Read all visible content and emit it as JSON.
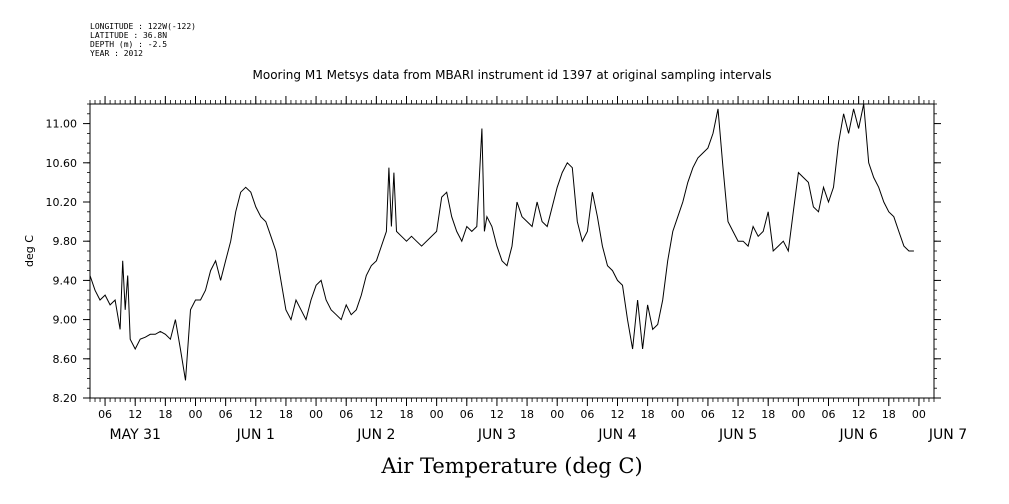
{
  "metadata": {
    "longitude": "LONGITUDE : 122W(-122)",
    "latitude": "LATITUDE : 36.8N",
    "depth": "DEPTH (m) : -2.5",
    "year": "YEAR : 2012"
  },
  "chart_data": {
    "type": "line",
    "title": "Mooring M1 Metsys data from MBARI instrument id 1397 at original sampling intervals",
    "xlabel": "Air Temperature (deg C)",
    "ylabel": "deg C",
    "ylim": [
      8.2,
      11.2
    ],
    "yticks": [
      "8.20",
      "8.60",
      "9.00",
      "9.40",
      "9.80",
      "10.20",
      "10.60",
      "11.00"
    ],
    "xlim_hours_label": [
      "2012-05-31 03:00",
      "2012-06-07 00:00"
    ],
    "hour_ticks": [
      {
        "day": 0,
        "hour": 6,
        "label": "06"
      },
      {
        "day": 0,
        "hour": 12,
        "label": "12"
      },
      {
        "day": 0,
        "hour": 18,
        "label": "18"
      },
      {
        "day": 1,
        "hour": 0,
        "label": "00"
      },
      {
        "day": 1,
        "hour": 6,
        "label": "06"
      },
      {
        "day": 1,
        "hour": 12,
        "label": "12"
      },
      {
        "day": 1,
        "hour": 18,
        "label": "18"
      },
      {
        "day": 2,
        "hour": 0,
        "label": "00"
      },
      {
        "day": 2,
        "hour": 6,
        "label": "06"
      },
      {
        "day": 2,
        "hour": 12,
        "label": "12"
      },
      {
        "day": 2,
        "hour": 18,
        "label": "18"
      },
      {
        "day": 3,
        "hour": 0,
        "label": "00"
      },
      {
        "day": 3,
        "hour": 6,
        "label": "06"
      },
      {
        "day": 3,
        "hour": 12,
        "label": "12"
      },
      {
        "day": 3,
        "hour": 18,
        "label": "18"
      },
      {
        "day": 4,
        "hour": 0,
        "label": "00"
      },
      {
        "day": 4,
        "hour": 6,
        "label": "06"
      },
      {
        "day": 4,
        "hour": 12,
        "label": "12"
      },
      {
        "day": 4,
        "hour": 18,
        "label": "18"
      },
      {
        "day": 5,
        "hour": 0,
        "label": "00"
      },
      {
        "day": 5,
        "hour": 6,
        "label": "06"
      },
      {
        "day": 5,
        "hour": 12,
        "label": "12"
      },
      {
        "day": 5,
        "hour": 18,
        "label": "18"
      },
      {
        "day": 6,
        "hour": 0,
        "label": "00"
      },
      {
        "day": 6,
        "hour": 6,
        "label": "06"
      },
      {
        "day": 6,
        "hour": 12,
        "label": "12"
      },
      {
        "day": 6,
        "hour": 18,
        "label": "18"
      },
      {
        "day": 7,
        "hour": 0,
        "label": "00"
      }
    ],
    "date_labels": [
      {
        "day": 0,
        "hour": 12,
        "label": "MAY 31"
      },
      {
        "day": 1,
        "hour": 12,
        "label": "JUN  1"
      },
      {
        "day": 2,
        "hour": 12,
        "label": "JUN  2"
      },
      {
        "day": 3,
        "hour": 12,
        "label": "JUN  3"
      },
      {
        "day": 4,
        "hour": 12,
        "label": "JUN  4"
      },
      {
        "day": 5,
        "hour": 12,
        "label": "JUN  5"
      },
      {
        "day": 6,
        "hour": 12,
        "label": "JUN  6"
      },
      {
        "day": 7,
        "hour": 12,
        "label": "JUN  7"
      }
    ],
    "series": [
      {
        "points_day_hour_value": [
          [
            0,
            3,
            9.45
          ],
          [
            0,
            4,
            9.3
          ],
          [
            0,
            5,
            9.2
          ],
          [
            0,
            6,
            9.25
          ],
          [
            0,
            7,
            9.15
          ],
          [
            0,
            8,
            9.2
          ],
          [
            0,
            9,
            8.9
          ],
          [
            0,
            9.5,
            9.6
          ],
          [
            0,
            10,
            9.1
          ],
          [
            0,
            10.5,
            9.45
          ],
          [
            0,
            11,
            8.8
          ],
          [
            0,
            12,
            8.7
          ],
          [
            0,
            13,
            8.8
          ],
          [
            0,
            14,
            8.82
          ],
          [
            0,
            15,
            8.85
          ],
          [
            0,
            16,
            8.85
          ],
          [
            0,
            17,
            8.88
          ],
          [
            0,
            18,
            8.85
          ],
          [
            0,
            19,
            8.8
          ],
          [
            0,
            20,
            9.0
          ],
          [
            0,
            21,
            8.7
          ],
          [
            0,
            22,
            8.38
          ],
          [
            0,
            23,
            9.1
          ],
          [
            1,
            0,
            9.2
          ],
          [
            1,
            1,
            9.2
          ],
          [
            1,
            2,
            9.3
          ],
          [
            1,
            3,
            9.5
          ],
          [
            1,
            4,
            9.6
          ],
          [
            1,
            5,
            9.4
          ],
          [
            1,
            6,
            9.6
          ],
          [
            1,
            7,
            9.8
          ],
          [
            1,
            8,
            10.1
          ],
          [
            1,
            9,
            10.3
          ],
          [
            1,
            10,
            10.35
          ],
          [
            1,
            11,
            10.3
          ],
          [
            1,
            12,
            10.15
          ],
          [
            1,
            13,
            10.05
          ],
          [
            1,
            14,
            10.0
          ],
          [
            1,
            15,
            9.85
          ],
          [
            1,
            16,
            9.7
          ],
          [
            1,
            17,
            9.4
          ],
          [
            1,
            18,
            9.1
          ],
          [
            1,
            19,
            9.0
          ],
          [
            1,
            20,
            9.2
          ],
          [
            1,
            21,
            9.1
          ],
          [
            1,
            22,
            9.0
          ],
          [
            1,
            23,
            9.2
          ],
          [
            2,
            0,
            9.35
          ],
          [
            2,
            1,
            9.4
          ],
          [
            2,
            2,
            9.2
          ],
          [
            2,
            3,
            9.1
          ],
          [
            2,
            4,
            9.05
          ],
          [
            2,
            5,
            9.0
          ],
          [
            2,
            6,
            9.15
          ],
          [
            2,
            7,
            9.05
          ],
          [
            2,
            8,
            9.1
          ],
          [
            2,
            9,
            9.25
          ],
          [
            2,
            10,
            9.45
          ],
          [
            2,
            11,
            9.55
          ],
          [
            2,
            12,
            9.6
          ],
          [
            2,
            13,
            9.75
          ],
          [
            2,
            14,
            9.9
          ],
          [
            2,
            14.5,
            10.55
          ],
          [
            2,
            15,
            9.95
          ],
          [
            2,
            15.5,
            10.5
          ],
          [
            2,
            16,
            9.9
          ],
          [
            2,
            17,
            9.85
          ],
          [
            2,
            18,
            9.8
          ],
          [
            2,
            19,
            9.85
          ],
          [
            2,
            20,
            9.8
          ],
          [
            2,
            21,
            9.75
          ],
          [
            3,
            0,
            9.9
          ],
          [
            3,
            1,
            10.25
          ],
          [
            3,
            2,
            10.3
          ],
          [
            3,
            3,
            10.05
          ],
          [
            3,
            4,
            9.9
          ],
          [
            3,
            5,
            9.8
          ],
          [
            3,
            6,
            9.95
          ],
          [
            3,
            7,
            9.9
          ],
          [
            3,
            8,
            9.95
          ],
          [
            3,
            9,
            10.95
          ],
          [
            3,
            9.5,
            9.9
          ],
          [
            3,
            10,
            10.05
          ],
          [
            3,
            11,
            9.95
          ],
          [
            3,
            12,
            9.75
          ],
          [
            3,
            13,
            9.6
          ],
          [
            3,
            14,
            9.55
          ],
          [
            3,
            15,
            9.75
          ],
          [
            3,
            16,
            10.2
          ],
          [
            3,
            17,
            10.05
          ],
          [
            3,
            18,
            10.0
          ],
          [
            3,
            19,
            9.95
          ],
          [
            3,
            20,
            10.2
          ],
          [
            3,
            21,
            10.0
          ],
          [
            3,
            22,
            9.95
          ],
          [
            4,
            0,
            10.35
          ],
          [
            4,
            1,
            10.5
          ],
          [
            4,
            2,
            10.6
          ],
          [
            4,
            3,
            10.55
          ],
          [
            4,
            4,
            10.0
          ],
          [
            4,
            5,
            9.8
          ],
          [
            4,
            6,
            9.9
          ],
          [
            4,
            7,
            10.3
          ],
          [
            4,
            8,
            10.05
          ],
          [
            4,
            9,
            9.75
          ],
          [
            4,
            10,
            9.55
          ],
          [
            4,
            11,
            9.5
          ],
          [
            4,
            12,
            9.4
          ],
          [
            4,
            13,
            9.35
          ],
          [
            4,
            14,
            9.0
          ],
          [
            4,
            15,
            8.7
          ],
          [
            4,
            16,
            9.2
          ],
          [
            4,
            17,
            8.7
          ],
          [
            4,
            18,
            9.15
          ],
          [
            4,
            19,
            8.9
          ],
          [
            4,
            20,
            8.95
          ],
          [
            4,
            21,
            9.2
          ],
          [
            4,
            22,
            9.6
          ],
          [
            4,
            23,
            9.9
          ],
          [
            5,
            0,
            10.05
          ],
          [
            5,
            1,
            10.2
          ],
          [
            5,
            2,
            10.4
          ],
          [
            5,
            3,
            10.55
          ],
          [
            5,
            4,
            10.65
          ],
          [
            5,
            5,
            10.7
          ],
          [
            5,
            6,
            10.75
          ],
          [
            5,
            7,
            10.9
          ],
          [
            5,
            8,
            11.15
          ],
          [
            5,
            9,
            10.55
          ],
          [
            5,
            10,
            10.0
          ],
          [
            5,
            11,
            9.9
          ],
          [
            5,
            12,
            9.8
          ],
          [
            5,
            13,
            9.8
          ],
          [
            5,
            14,
            9.75
          ],
          [
            5,
            15,
            9.95
          ],
          [
            5,
            16,
            9.85
          ],
          [
            5,
            17,
            9.9
          ],
          [
            5,
            18,
            10.1
          ],
          [
            5,
            19,
            9.7
          ],
          [
            5,
            20,
            9.75
          ],
          [
            5,
            21,
            9.8
          ],
          [
            5,
            22,
            9.7
          ],
          [
            5,
            23,
            10.1
          ],
          [
            6,
            0,
            10.5
          ],
          [
            6,
            1,
            10.45
          ],
          [
            6,
            2,
            10.4
          ],
          [
            6,
            3,
            10.15
          ],
          [
            6,
            4,
            10.1
          ],
          [
            6,
            5,
            10.35
          ],
          [
            6,
            6,
            10.2
          ],
          [
            6,
            7,
            10.35
          ],
          [
            6,
            8,
            10.8
          ],
          [
            6,
            9,
            11.1
          ],
          [
            6,
            10,
            10.9
          ],
          [
            6,
            11,
            11.15
          ],
          [
            6,
            12,
            10.95
          ],
          [
            6,
            13,
            11.2
          ],
          [
            6,
            14,
            10.6
          ],
          [
            6,
            15,
            10.45
          ],
          [
            6,
            16,
            10.35
          ],
          [
            6,
            17,
            10.2
          ],
          [
            6,
            18,
            10.1
          ],
          [
            6,
            19,
            10.05
          ],
          [
            6,
            20,
            9.9
          ],
          [
            6,
            21,
            9.75
          ],
          [
            6,
            22,
            9.7
          ],
          [
            6,
            23,
            9.7
          ]
        ]
      }
    ]
  }
}
